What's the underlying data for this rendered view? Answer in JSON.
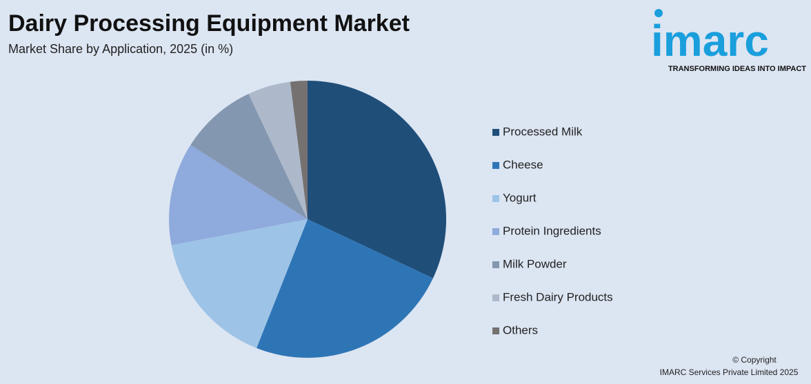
{
  "chart_data": {
    "type": "pie",
    "title": "Dairy Processing Equipment Market",
    "subtitle": "Market Share by Application, 2025 (in %)",
    "categories": [
      "Processed Milk",
      "Cheese",
      "Yogurt",
      "Protein Ingredients",
      "Milk Powder",
      "Fresh Dairy Products",
      "Others"
    ],
    "values": [
      32,
      24,
      16,
      12,
      9,
      5,
      2
    ],
    "colors": [
      "#1f4e79",
      "#2e75b6",
      "#9dc3e6",
      "#8faadc",
      "#8497b0",
      "#adb9ca",
      "#767171"
    ]
  },
  "logo": {
    "name": "imarc",
    "tagline": "TRANSFORMING IDEAS INTO IMPACT"
  },
  "footer": {
    "copyright": "© Copyright",
    "company": "IMARC Services Private Limited 2025"
  }
}
